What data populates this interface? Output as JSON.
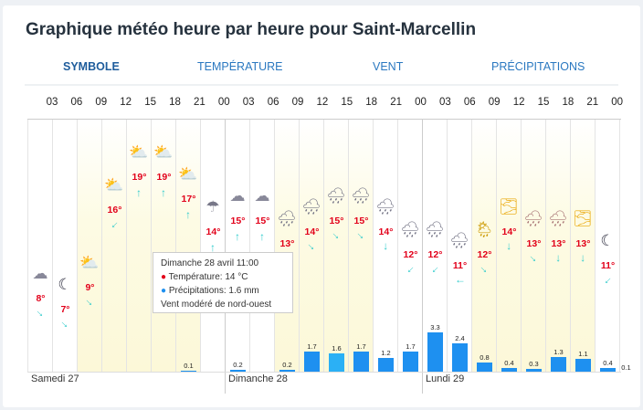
{
  "title": "Graphique météo heure par heure pour Saint-Marcellin",
  "tabs": [
    "SYMBOLE",
    "TEMPÉRATURE",
    "VENT",
    "PRÉCIPITATIONS"
  ],
  "hours": [
    "03",
    "06",
    "09",
    "12",
    "15",
    "18",
    "21",
    "00",
    "03",
    "06",
    "09",
    "12",
    "15",
    "18",
    "21",
    "00",
    "03",
    "06",
    "09",
    "12",
    "15",
    "18",
    "21",
    "00"
  ],
  "days": [
    "Samedi 27",
    "Dimanche 28",
    "Lundi 29"
  ],
  "colors": {
    "temp": "#e2001a",
    "bar": "#1e90f0",
    "wind": "#33cccc"
  },
  "tooltip": {
    "title": "Dimanche 28 avril 11:00",
    "temp": "Température: 14 °C",
    "precip": "Précipitations: 1.6 mm",
    "wind": "Vent modéré de nord-ouest"
  },
  "chart_data": {
    "type": "table",
    "columns": [
      {
        "icon": "night-partly-cloudy",
        "temp": 8,
        "temp_label": "8°",
        "wind_deg": 135,
        "precip": null,
        "precip_label": ""
      },
      {
        "icon": "moon-cloud",
        "temp": 7,
        "temp_label": "7°",
        "wind_deg": 135,
        "precip": null,
        "precip_label": ""
      },
      {
        "icon": "sun-cloud",
        "temp": 9,
        "temp_label": "9°",
        "wind_deg": 135,
        "precip": null,
        "precip_label": ""
      },
      {
        "icon": "sun-cloud",
        "temp": 16,
        "temp_label": "16°",
        "wind_deg": 225,
        "precip": null,
        "precip_label": ""
      },
      {
        "icon": "sun-cloud",
        "temp": 19,
        "temp_label": "19°",
        "wind_deg": 0,
        "precip": null,
        "precip_label": ""
      },
      {
        "icon": "sun-cloud",
        "temp": 19,
        "temp_label": "19°",
        "wind_deg": 0,
        "precip": null,
        "precip_label": ""
      },
      {
        "icon": "sun-cloud",
        "temp": 17,
        "temp_label": "17°",
        "wind_deg": 0,
        "precip": 0.1,
        "precip_label": "0.1"
      },
      {
        "icon": "night-rain",
        "temp": 14,
        "temp_label": "14°",
        "wind_deg": 0,
        "precip": null,
        "precip_label": ""
      },
      {
        "icon": "night-cloud",
        "temp": 15,
        "temp_label": "15°",
        "wind_deg": 0,
        "precip": 0.2,
        "precip_label": "0.2"
      },
      {
        "icon": "night-cloud",
        "temp": 15,
        "temp_label": "15°",
        "wind_deg": 0,
        "precip": null,
        "precip_label": ""
      },
      {
        "icon": "rain",
        "temp": 13,
        "temp_label": "13°",
        "wind_deg": 225,
        "precip": 0.2,
        "precip_label": "0.2"
      },
      {
        "icon": "rain",
        "temp": 14,
        "temp_label": "14°",
        "wind_deg": 135,
        "precip": 1.7,
        "precip_label": "1.7"
      },
      {
        "icon": "rain",
        "temp": 15,
        "temp_label": "15°",
        "wind_deg": 135,
        "precip": 1.6,
        "precip_label": "1.6"
      },
      {
        "icon": "rain",
        "temp": 15,
        "temp_label": "15°",
        "wind_deg": 135,
        "precip": 1.7,
        "precip_label": "1.7"
      },
      {
        "icon": "rain",
        "temp": 14,
        "temp_label": "14°",
        "wind_deg": 180,
        "precip": 1.2,
        "precip_label": "1.2"
      },
      {
        "icon": "rain",
        "temp": 12,
        "temp_label": "12°",
        "wind_deg": 225,
        "precip": 1.7,
        "precip_label": "1.7"
      },
      {
        "icon": "rain",
        "temp": 12,
        "temp_label": "12°",
        "wind_deg": 225,
        "precip": 3.3,
        "precip_label": "3.3"
      },
      {
        "icon": "rain",
        "temp": 11,
        "temp_label": "11°",
        "wind_deg": 270,
        "precip": 2.4,
        "precip_label": "2.4"
      },
      {
        "icon": "sun-rain",
        "temp": 12,
        "temp_label": "12°",
        "wind_deg": 135,
        "precip": 0.8,
        "precip_label": "0.8"
      },
      {
        "icon": "sun-fog",
        "temp": 14,
        "temp_label": "14°",
        "wind_deg": 180,
        "precip": 0.4,
        "precip_label": "0.4"
      },
      {
        "icon": "storm-rain",
        "temp": 13,
        "temp_label": "13°",
        "wind_deg": 135,
        "precip": 0.3,
        "precip_label": "0.3"
      },
      {
        "icon": "storm-rain",
        "temp": 13,
        "temp_label": "13°",
        "wind_deg": 180,
        "precip": 1.3,
        "precip_label": "1.3"
      },
      {
        "icon": "sun-fog",
        "temp": 13,
        "temp_label": "13°",
        "wind_deg": 180,
        "precip": 1.1,
        "precip_label": "1.1"
      },
      {
        "icon": "night-fog",
        "temp": 11,
        "temp_label": "11°",
        "wind_deg": 225,
        "precip": 0.4,
        "precip_label": "0.4"
      }
    ],
    "trailing_precip_label": "0.1"
  }
}
